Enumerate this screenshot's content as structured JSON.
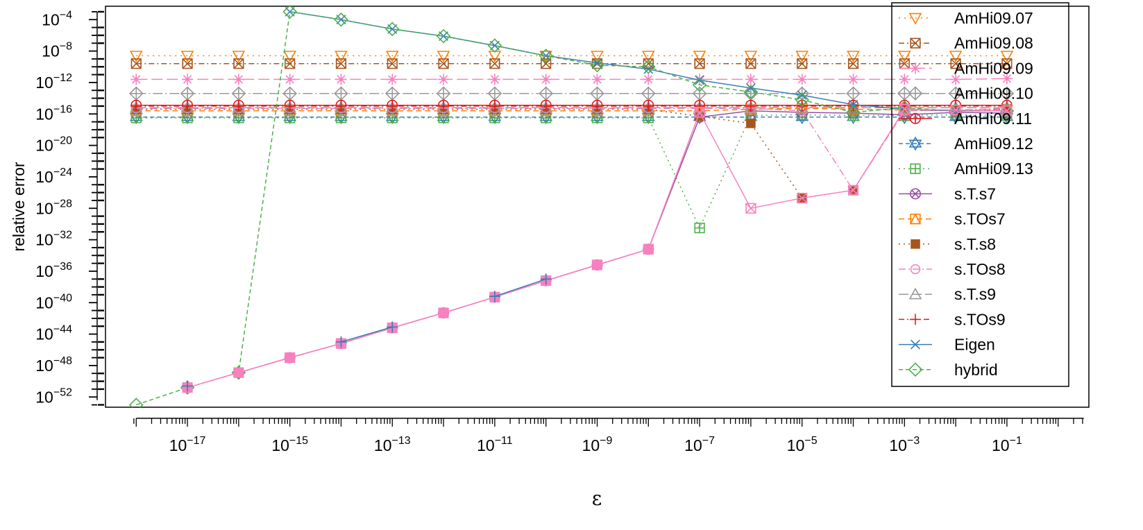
{
  "chart_data": {
    "type": "line",
    "xlabel": "ε",
    "ylabel": "relative error",
    "x_scale": "log10",
    "y_scale": "log10",
    "xlim_log10": [
      -18.6,
      0.6
    ],
    "ylim_log10": [
      -53.3,
      -2.3
    ],
    "x_major_ticks": [
      {
        "exp": -17,
        "label_base": "10",
        "label_exp": "−17"
      },
      {
        "exp": -15,
        "label_base": "10",
        "label_exp": "−15"
      },
      {
        "exp": -13,
        "label_base": "10",
        "label_exp": "−13"
      },
      {
        "exp": -11,
        "label_base": "10",
        "label_exp": "−11"
      },
      {
        "exp": -9,
        "label_base": "10",
        "label_exp": "−9"
      },
      {
        "exp": -7,
        "label_base": "10",
        "label_exp": "−7"
      },
      {
        "exp": -5,
        "label_base": "10",
        "label_exp": "−5"
      },
      {
        "exp": -3,
        "label_base": "10",
        "label_exp": "−3"
      },
      {
        "exp": -1,
        "label_base": "10",
        "label_exp": "−1"
      }
    ],
    "y_major_ticks": [
      {
        "exp": -4,
        "label_base": "10",
        "label_exp": "−4"
      },
      {
        "exp": -8,
        "label_base": "10",
        "label_exp": "−8"
      },
      {
        "exp": -12,
        "label_base": "10",
        "label_exp": "−12"
      },
      {
        "exp": -16,
        "label_base": "10",
        "label_exp": "−16"
      },
      {
        "exp": -20,
        "label_base": "10",
        "label_exp": "−20"
      },
      {
        "exp": -24,
        "label_base": "10",
        "label_exp": "−24"
      },
      {
        "exp": -28,
        "label_base": "10",
        "label_exp": "−28"
      },
      {
        "exp": -32,
        "label_base": "10",
        "label_exp": "−32"
      },
      {
        "exp": -36,
        "label_base": "10",
        "label_exp": "−36"
      },
      {
        "exp": -40,
        "label_base": "10",
        "label_exp": "−40"
      },
      {
        "exp": -44,
        "label_base": "10",
        "label_exp": "−44"
      },
      {
        "exp": -48,
        "label_base": "10",
        "label_exp": "−48"
      },
      {
        "exp": -52,
        "label_base": "10",
        "label_exp": "−52"
      }
    ],
    "x_log10": [
      -18,
      -17,
      -16,
      -15,
      -14,
      -13,
      -12,
      -11,
      -10,
      -9,
      -8,
      -7,
      -6,
      -5,
      -4,
      -3,
      -2,
      -1
    ],
    "legend_position": "top-right",
    "grid": false,
    "series": [
      {
        "name": "AmHi09.07",
        "color": "#FF7F00",
        "dash": "2,6",
        "marker": "triangle-down",
        "y_log10": [
          -8.6,
          -8.6,
          -8.6,
          -8.6,
          -8.6,
          -8.6,
          -8.6,
          -8.6,
          -8.6,
          -8.6,
          -8.6,
          -8.6,
          -8.6,
          -8.6,
          -8.6,
          -8.6,
          -8.6,
          -8.6
        ]
      },
      {
        "name": "AmHi09.08",
        "color": "#A6561D",
        "dash": "8,4,2,4",
        "marker": "square-x",
        "y_log10": [
          -9.6,
          -9.6,
          -9.6,
          -9.6,
          -9.6,
          -9.6,
          -9.6,
          -9.6,
          -9.6,
          -9.6,
          -9.6,
          -9.6,
          -9.6,
          -9.6,
          -9.6,
          -9.6,
          -9.6,
          -9.6
        ]
      },
      {
        "name": "AmHi09.09",
        "color": "#F781BF",
        "dash": "16,6",
        "marker": "asterisk",
        "y_log10": [
          -11.6,
          -11.6,
          -11.6,
          -11.6,
          -11.6,
          -11.6,
          -11.6,
          -11.6,
          -11.6,
          -11.6,
          -11.6,
          -11.6,
          -11.6,
          -11.6,
          -11.6,
          -11.6,
          -11.6,
          -11.5
        ]
      },
      {
        "name": "AmHi09.10",
        "color": "#999999",
        "dash": "14,4,2,4",
        "marker": "diamond-plus",
        "y_log10": [
          -13.4,
          -13.4,
          -13.4,
          -13.4,
          -13.4,
          -13.4,
          -13.4,
          -13.4,
          -13.4,
          -13.4,
          -13.4,
          -13.4,
          -13.4,
          -13.4,
          -13.4,
          -13.4,
          -13.4,
          -13.4
        ]
      },
      {
        "name": "AmHi09.11",
        "color": "#E41A1C",
        "dash": "",
        "marker": "circle-plus",
        "y_log10": [
          -14.9,
          -14.9,
          -14.9,
          -14.9,
          -14.9,
          -14.9,
          -14.9,
          -14.9,
          -14.9,
          -14.9,
          -14.9,
          -14.9,
          -14.9,
          -14.9,
          -14.9,
          -14.9,
          -14.9,
          -14.9
        ]
      },
      {
        "name": "AmHi09.12",
        "color": "#377EB8",
        "dash": "6,4",
        "marker": "star-of-david",
        "y_log10": [
          -16.4,
          -16.4,
          -16.4,
          -16.4,
          -16.4,
          -16.4,
          -16.4,
          -16.4,
          -16.4,
          -16.4,
          -16.4,
          -16.4,
          -16.4,
          -16.4,
          -16.4,
          -16.4,
          -16.4,
          -16.4
        ]
      },
      {
        "name": "AmHi09.13",
        "color": "#4DAF4A",
        "dash": "2,5",
        "marker": "square-plus",
        "y_log10": [
          -16.5,
          -16.5,
          -16.5,
          -16.5,
          -16.5,
          -16.5,
          -16.5,
          -16.5,
          -16.5,
          -16.5,
          -16.5,
          -30.5,
          -16.2,
          -16.1,
          -16.2,
          -16.2,
          -16.1,
          -16.2
        ]
      },
      {
        "name": "s.T.s7",
        "color": "#984EA3",
        "dash": "",
        "marker": "circle-x",
        "y_log10": [
          null,
          null,
          -48.9,
          -47.0,
          -45.2,
          -43.2,
          -41.3,
          -39.3,
          -37.2,
          -35.2,
          -33.2,
          -16.4,
          -15.6,
          -15.8,
          -15.9,
          -16.1,
          -15.8,
          -15.9
        ]
      },
      {
        "name": "s.TOs7",
        "color": "#FF7F00",
        "dash": "8,5",
        "marker": "triangle-square",
        "y_log10": [
          -15.6,
          -15.6,
          -15.6,
          -15.6,
          -15.6,
          -15.6,
          -15.6,
          -15.6,
          -15.6,
          -15.6,
          -15.6,
          -15.6,
          -15.4,
          -15.3,
          -15.4,
          -15.5,
          -15.6,
          -15.4
        ]
      },
      {
        "name": "s.T.s8",
        "color": "#A6561D",
        "dash": "2,5",
        "marker": "filled-square",
        "y_log10": [
          -15.4,
          -15.4,
          -15.4,
          -15.4,
          -15.4,
          -15.4,
          -15.4,
          -15.4,
          -15.4,
          -15.4,
          -15.4,
          -16.3,
          -17.2,
          -26.7,
          -25.7,
          -15.5,
          -15.6,
          -15.4
        ]
      },
      {
        "name": "s.TOs8",
        "color": "#F781BF",
        "dash": "10,4,2,4",
        "marker": "circle",
        "y_log10": [
          -15.3,
          -15.3,
          -15.3,
          -15.3,
          -15.3,
          -15.3,
          -15.3,
          -15.3,
          -15.3,
          -15.3,
          -15.3,
          -15.3,
          -15.3,
          -15.6,
          -25.7,
          -15.6,
          -15.5,
          -15.3
        ]
      },
      {
        "name": "s.T.s9",
        "color": "#999999",
        "dash": "14,5",
        "marker": "triangle",
        "y_log10": [
          -15.2,
          -15.2,
          -15.2,
          -15.2,
          -15.2,
          -15.2,
          -15.2,
          -15.2,
          -15.2,
          -15.2,
          -15.2,
          -15.2,
          -15.2,
          -15.2,
          -15.2,
          -15.2,
          -15.2,
          -15.2
        ]
      },
      {
        "name": "s.TOs9",
        "color": "#E41A1C",
        "dash": "8,4,2,4",
        "marker": "plus",
        "y_log10": [
          -15.0,
          -15.0,
          -15.0,
          -15.0,
          -15.0,
          -15.0,
          -15.0,
          -15.0,
          -15.0,
          -15.0,
          -15.0,
          -15.0,
          -15.0,
          -15.0,
          -15.0,
          -15.0,
          -15.0,
          -15.0
        ]
      },
      {
        "name": "Eigen",
        "color": "#377EB8",
        "dash": "",
        "marker": "x",
        "y_log10": [
          null,
          null,
          null,
          -3.0,
          -4.0,
          -5.2,
          -6.1,
          -7.3,
          -8.6,
          -9.5,
          -10.3,
          -11.7,
          -12.7,
          -13.6,
          -14.8,
          -15.4,
          -15.6,
          -15.6
        ]
      },
      {
        "name": "hybrid",
        "color": "#4DAF4A",
        "dash": "6,4",
        "marker": "diamond",
        "y_log10": [
          -53.0,
          -50.8,
          -48.9,
          -3.0,
          -4.0,
          -5.2,
          -6.1,
          -7.3,
          -8.6,
          -9.8,
          -10.0,
          -12.3,
          -13.2,
          -14.2,
          -15.8,
          -15.2,
          -15.6,
          -15.6
        ]
      },
      {
        "name": "",
        "color": "#F781BF",
        "dash": "",
        "marker": "square-x",
        "y_log10": [
          null,
          -50.8,
          -48.9,
          -47.0,
          -45.2,
          -43.2,
          -41.3,
          -39.3,
          -37.2,
          -35.2,
          -33.2,
          -15.8,
          -28.0,
          -26.7,
          -25.7,
          -15.4,
          -15.5,
          -15.6
        ]
      },
      {
        "name": "",
        "color": "#F781BF",
        "dash": "4,4,1,4",
        "marker": "filled-square",
        "y_log10": [
          null,
          -50.8,
          -48.9,
          -47.0,
          -45.2,
          -43.2,
          -41.3,
          -39.3,
          -37.2,
          -35.2,
          -33.2,
          null,
          null,
          null,
          null,
          null,
          null,
          null
        ]
      },
      {
        "name": "",
        "color": "#377EB8",
        "dash": "",
        "marker": "plus",
        "y_log10": [
          null,
          -50.6,
          null,
          null,
          -45.0,
          -43.1,
          null,
          -39.2,
          -37.0,
          null,
          null,
          null,
          null,
          null,
          null,
          null,
          null,
          null
        ]
      }
    ]
  }
}
